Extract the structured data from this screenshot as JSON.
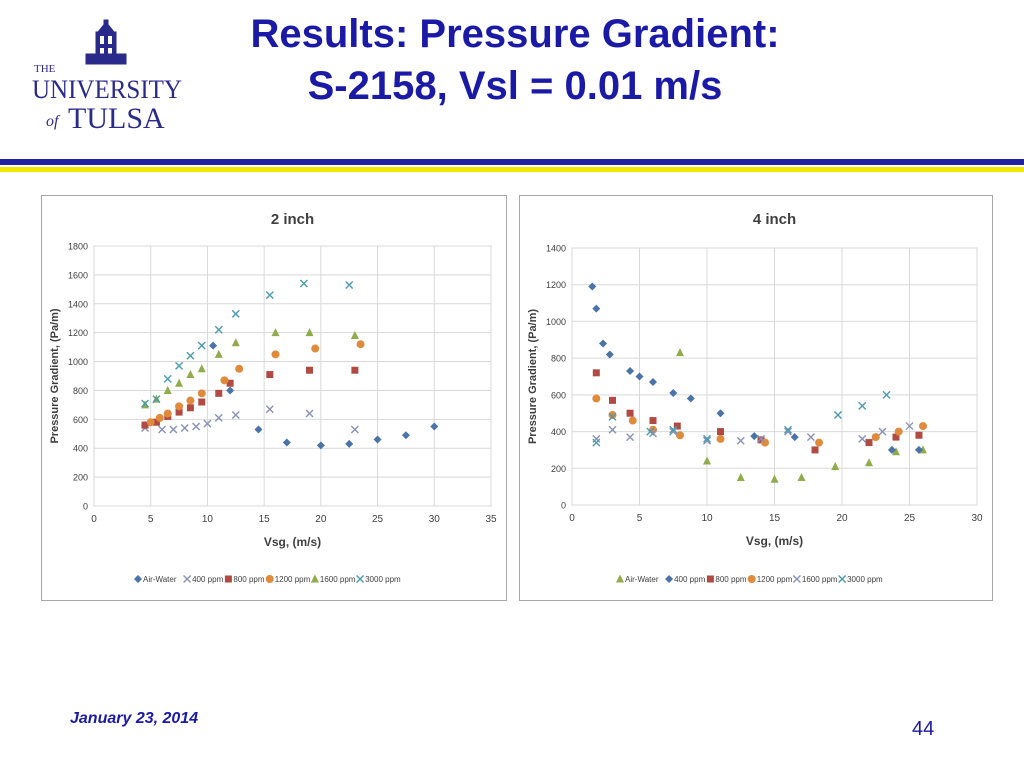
{
  "logo": {
    "line1": "THE",
    "line2": "UNIVERSITY",
    "line3a": "of",
    "line3b": "TULSA"
  },
  "title": {
    "line1": "Results: Pressure Gradient:",
    "line2": "S-2158, Vsl = 0.01 m/s"
  },
  "colors": {
    "title": "#1a1aa6",
    "rule_blue": "#2020a0",
    "rule_yellow": "#f2e600"
  },
  "footer": {
    "date": "January 23, 2014",
    "page": "44"
  },
  "chart_data": [
    {
      "type": "scatter",
      "title": "2 inch",
      "xlabel": "Vsg, (m/s)",
      "ylabel": "Pressure Gradient, (Pa/m)",
      "xlim": [
        0,
        35
      ],
      "ylim": [
        0,
        1800
      ],
      "xticks": [
        0,
        5,
        10,
        15,
        20,
        25,
        30,
        35
      ],
      "yticks": [
        0,
        200,
        400,
        600,
        800,
        1000,
        1200,
        1400,
        1600,
        1800
      ],
      "grid": true,
      "legend_position": "bottom",
      "series": [
        {
          "name": "Air-Water",
          "marker": "diamond",
          "color": "#4a73a8",
          "points": [
            [
              4.5,
              560
            ],
            [
              10.5,
              1110
            ],
            [
              12,
              800
            ],
            [
              14.5,
              530
            ],
            [
              17,
              440
            ],
            [
              20,
              420
            ],
            [
              22.5,
              430
            ],
            [
              25,
              460
            ],
            [
              27.5,
              490
            ],
            [
              30,
              550
            ]
          ]
        },
        {
          "name": "400 ppm",
          "marker": "x",
          "color": "#8892b8",
          "points": [
            [
              4.5,
              540
            ],
            [
              6,
              530
            ],
            [
              7,
              530
            ],
            [
              8,
              540
            ],
            [
              9,
              550
            ],
            [
              10,
              570
            ],
            [
              11,
              610
            ],
            [
              12.5,
              630
            ],
            [
              15.5,
              670
            ],
            [
              19,
              640
            ],
            [
              23,
              530
            ]
          ]
        },
        {
          "name": "800 ppm",
          "marker": "square",
          "color": "#b24a44",
          "points": [
            [
              4.5,
              560
            ],
            [
              5.5,
              580
            ],
            [
              6.5,
              620
            ],
            [
              7.5,
              650
            ],
            [
              8.5,
              680
            ],
            [
              9.5,
              720
            ],
            [
              11,
              780
            ],
            [
              12,
              850
            ],
            [
              15.5,
              910
            ],
            [
              19,
              940
            ],
            [
              23,
              940
            ]
          ]
        },
        {
          "name": "1200 ppm",
          "marker": "circle",
          "color": "#e08a3c",
          "points": [
            [
              5,
              580
            ],
            [
              5.8,
              610
            ],
            [
              6.5,
              640
            ],
            [
              7.5,
              690
            ],
            [
              8.5,
              730
            ],
            [
              9.5,
              780
            ],
            [
              11.5,
              870
            ],
            [
              12.8,
              950
            ],
            [
              16,
              1050
            ],
            [
              19.5,
              1090
            ],
            [
              23.5,
              1120
            ]
          ]
        },
        {
          "name": "1600 ppm",
          "marker": "triangle",
          "color": "#8fab4a",
          "points": [
            [
              4.5,
              700
            ],
            [
              5.5,
              740
            ],
            [
              6.5,
              800
            ],
            [
              7.5,
              850
            ],
            [
              8.5,
              910
            ],
            [
              9.5,
              950
            ],
            [
              11,
              1050
            ],
            [
              12.5,
              1130
            ],
            [
              16,
              1200
            ],
            [
              19,
              1200
            ],
            [
              23,
              1180
            ]
          ]
        },
        {
          "name": "3000 ppm",
          "marker": "x",
          "color": "#4a9ab0",
          "points": [
            [
              4.5,
              710
            ],
            [
              5.5,
              740
            ],
            [
              6.5,
              880
            ],
            [
              7.5,
              970
            ],
            [
              8.5,
              1040
            ],
            [
              9.5,
              1110
            ],
            [
              11,
              1220
            ],
            [
              12.5,
              1330
            ],
            [
              15.5,
              1460
            ],
            [
              18.5,
              1540
            ],
            [
              22.5,
              1530
            ]
          ]
        }
      ]
    },
    {
      "type": "scatter",
      "title": "4 inch",
      "xlabel": "Vsg, (m/s)",
      "ylabel": "Pressure Gradient, (Pa/m)",
      "xlim": [
        0,
        30
      ],
      "ylim": [
        0,
        1400
      ],
      "xticks": [
        0,
        5,
        10,
        15,
        20,
        25,
        30
      ],
      "yticks": [
        0,
        200,
        400,
        600,
        800,
        1000,
        1200,
        1400
      ],
      "grid": true,
      "legend_position": "bottom",
      "series": [
        {
          "name": "Air-Water",
          "marker": "triangle",
          "color": "#8fab4a",
          "points": [
            [
              8,
              830
            ],
            [
              10,
              240
            ],
            [
              12.5,
              150
            ],
            [
              15,
              140
            ],
            [
              17,
              150
            ],
            [
              19.5,
              210
            ],
            [
              22,
              230
            ],
            [
              24,
              290
            ],
            [
              26,
              300
            ]
          ]
        },
        {
          "name": "400 ppm",
          "marker": "diamond",
          "color": "#4a73a8",
          "points": [
            [
              1.5,
              1190
            ],
            [
              1.8,
              1070
            ],
            [
              2.3,
              880
            ],
            [
              2.8,
              820
            ],
            [
              4.3,
              730
            ],
            [
              5,
              700
            ],
            [
              6,
              670
            ],
            [
              7.5,
              610
            ],
            [
              8.8,
              580
            ],
            [
              11,
              500
            ],
            [
              13.5,
              375
            ],
            [
              16.5,
              370
            ],
            [
              23.7,
              300
            ],
            [
              25.7,
              300
            ]
          ]
        },
        {
          "name": "800 ppm",
          "marker": "square",
          "color": "#b24a44",
          "points": [
            [
              1.8,
              720
            ],
            [
              3,
              570
            ],
            [
              4.3,
              500
            ],
            [
              6,
              460
            ],
            [
              7.8,
              430
            ],
            [
              11,
              400
            ],
            [
              14,
              355
            ],
            [
              18,
              300
            ],
            [
              22,
              340
            ],
            [
              24,
              370
            ],
            [
              25.7,
              380
            ]
          ]
        },
        {
          "name": "1200 ppm",
          "marker": "circle",
          "color": "#e08a3c",
          "points": [
            [
              1.8,
              580
            ],
            [
              3,
              490
            ],
            [
              4.5,
              460
            ],
            [
              6,
              410
            ],
            [
              8,
              380
            ],
            [
              11,
              360
            ],
            [
              14.3,
              340
            ],
            [
              18.3,
              340
            ],
            [
              22.5,
              370
            ],
            [
              24.2,
              400
            ],
            [
              26,
              430
            ]
          ]
        },
        {
          "name": "1600 ppm",
          "marker": "x",
          "color": "#8892b8",
          "points": [
            [
              1.8,
              360
            ],
            [
              3,
              410
            ],
            [
              4.3,
              370
            ],
            [
              6,
              390
            ],
            [
              7.5,
              400
            ],
            [
              10,
              350
            ],
            [
              12.5,
              350
            ],
            [
              14,
              360
            ],
            [
              16,
              400
            ],
            [
              17.7,
              370
            ],
            [
              21.5,
              360
            ],
            [
              23,
              400
            ],
            [
              25,
              430
            ]
          ]
        },
        {
          "name": "3000 ppm",
          "marker": "x",
          "color": "#4a9ab0",
          "points": [
            [
              1.8,
              340
            ],
            [
              3,
              480
            ],
            [
              5.8,
              400
            ],
            [
              7.5,
              410
            ],
            [
              10,
              360
            ],
            [
              16,
              410
            ],
            [
              19.7,
              490
            ],
            [
              21.5,
              540
            ],
            [
              23.3,
              600
            ]
          ]
        }
      ]
    }
  ]
}
